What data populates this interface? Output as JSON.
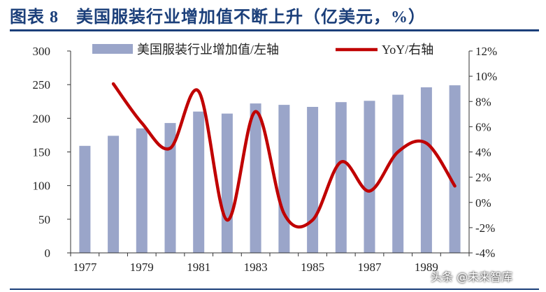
{
  "title": "图表 8　美国服装行业增加值不断上升（亿美元，%）",
  "watermark": "头条 @未来智库",
  "chart_data": {
    "type": "bar",
    "x": [
      1977,
      1978,
      1979,
      1980,
      1981,
      1982,
      1983,
      1984,
      1985,
      1986,
      1987,
      1988,
      1989,
      1990
    ],
    "x_tick_labels": [
      "1977",
      "1979",
      "1981",
      "1983",
      "1985",
      "1987",
      "1989"
    ],
    "series": [
      {
        "name": "美国服装行业增加值/左轴",
        "type": "bar",
        "axis": "left",
        "color": "#9aa5c9",
        "values": [
          159,
          174,
          185,
          193,
          210,
          207,
          222,
          220,
          217,
          224,
          226,
          235,
          246,
          249
        ]
      },
      {
        "name": "YoY/右轴",
        "type": "line",
        "axis": "right",
        "color": "#c00000",
        "values": [
          null,
          9.4,
          6.3,
          4.3,
          8.8,
          -1.4,
          7.2,
          -0.9,
          -1.4,
          3.2,
          0.9,
          4.0,
          4.7,
          1.3
        ]
      }
    ],
    "y_left": {
      "ylim": [
        0,
        300
      ],
      "ticks": [
        0,
        50,
        100,
        150,
        200,
        250,
        300
      ]
    },
    "y_right": {
      "ylim": [
        -4,
        12
      ],
      "ticks": [
        -4,
        -2,
        0,
        2,
        4,
        6,
        8,
        10,
        12
      ],
      "tick_labels": [
        "-4%",
        "-2%",
        "0%",
        "2%",
        "4%",
        "6%",
        "8%",
        "10%",
        "12%"
      ]
    },
    "legend_position": "top",
    "grid": false
  }
}
